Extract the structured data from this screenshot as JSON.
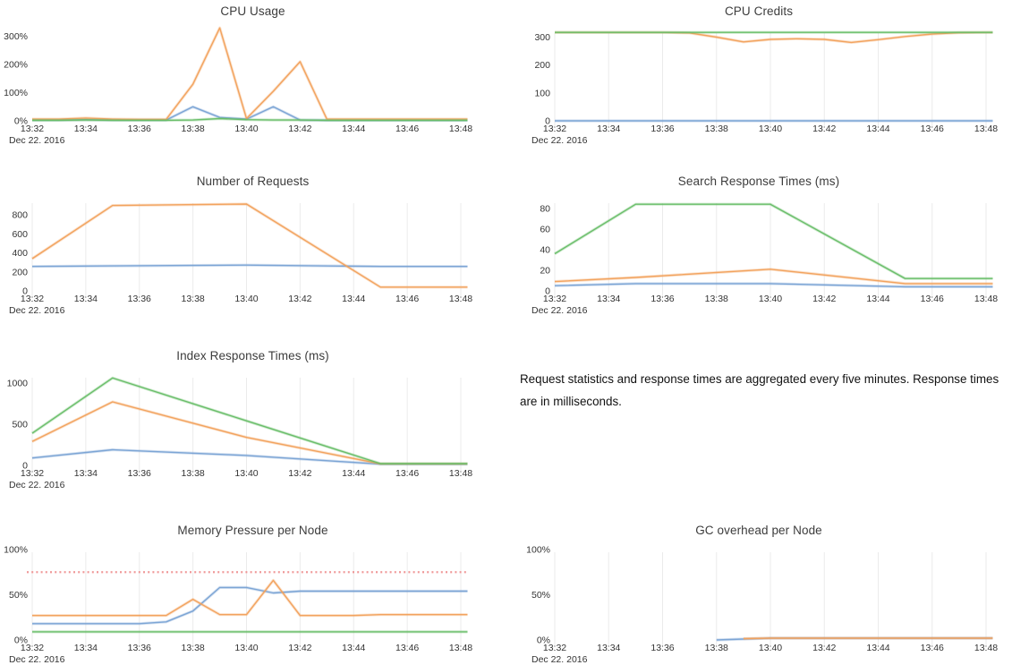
{
  "note": {
    "text": "Request statistics and response times are aggregated every five minutes. Response times are in milliseconds."
  },
  "palette": {
    "blue": "#7aa3d4",
    "orange": "#f2a15c",
    "green": "#68bd68",
    "red": "#ee8f8f",
    "grid": "#ebebeb",
    "tick_text": "#333333",
    "title_text": "#3c3c3c"
  },
  "x_axis": {
    "tick_labels": [
      "13:32",
      "13:34",
      "13:36",
      "13:38",
      "13:40",
      "13:42",
      "13:44",
      "13:46",
      "13:48"
    ],
    "tick_minutes": [
      0,
      2,
      4,
      6,
      8,
      10,
      12,
      14,
      16
    ],
    "date_label": "Dec 22. 2016",
    "minutes_domain": [
      0,
      16
    ]
  },
  "chart_data": [
    {
      "id": "cpu_usage",
      "type": "line",
      "title": "CPU Usage",
      "y_max": 337,
      "grid": false,
      "y_ticks": [
        {
          "v": 0,
          "label": "0%"
        },
        {
          "v": 100,
          "label": "100%"
        },
        {
          "v": 200,
          "label": "200%"
        },
        {
          "v": 300,
          "label": "300%"
        }
      ],
      "series": [
        {
          "color": "blue",
          "x": [
            0,
            1,
            2,
            3,
            4,
            5,
            6,
            7,
            8,
            9,
            10,
            11,
            12,
            13,
            14,
            15,
            16
          ],
          "y": [
            3,
            3,
            4,
            3,
            3,
            3,
            50,
            12,
            6,
            50,
            3,
            2,
            2,
            2,
            2,
            2,
            2
          ]
        },
        {
          "color": "orange",
          "x": [
            0,
            1,
            2,
            3,
            4,
            5,
            6,
            7,
            8,
            9,
            10,
            11,
            12,
            13,
            14,
            15,
            16
          ],
          "y": [
            6,
            6,
            10,
            6,
            5,
            5,
            130,
            330,
            8,
            105,
            210,
            6,
            6,
            6,
            6,
            6,
            6
          ]
        },
        {
          "color": "green",
          "x": [
            0,
            1,
            2,
            3,
            4,
            5,
            6,
            7,
            8,
            9,
            10,
            11,
            12,
            13,
            14,
            15,
            16
          ],
          "y": [
            2,
            2,
            3,
            2,
            2,
            2,
            3,
            8,
            4,
            3,
            3,
            2,
            2,
            2,
            2,
            2,
            2
          ]
        }
      ]
    },
    {
      "id": "cpu_credits",
      "type": "line",
      "title": "CPU Credits",
      "y_max": 340,
      "grid": true,
      "y_ticks": [
        {
          "v": 0,
          "label": "0"
        },
        {
          "v": 100,
          "label": "100"
        },
        {
          "v": 200,
          "label": "200"
        },
        {
          "v": 300,
          "label": "300"
        }
      ],
      "series": [
        {
          "color": "blue",
          "x": [
            0,
            1,
            2,
            3,
            4,
            5,
            6,
            7,
            8,
            9,
            10,
            11,
            12,
            13,
            14,
            15,
            16
          ],
          "y": [
            0,
            0,
            0,
            0,
            0,
            0,
            0,
            0,
            0,
            0,
            0,
            0,
            0,
            0,
            0,
            0,
            0
          ]
        },
        {
          "color": "orange",
          "x": [
            0,
            1,
            2,
            3,
            4,
            5,
            6,
            7,
            8,
            9,
            10,
            11,
            12,
            13,
            14,
            15,
            16
          ],
          "y": [
            317,
            317,
            317,
            317,
            317,
            315,
            300,
            283,
            292,
            294,
            292,
            281,
            291,
            302,
            311,
            316,
            317
          ]
        },
        {
          "color": "green",
          "x": [
            0,
            1,
            2,
            3,
            4,
            5,
            6,
            7,
            8,
            9,
            10,
            11,
            12,
            13,
            14,
            15,
            16
          ],
          "y": [
            317,
            317,
            317,
            317,
            317,
            317,
            317,
            317,
            317,
            317,
            317,
            317,
            317,
            317,
            317,
            317,
            317
          ]
        }
      ]
    },
    {
      "id": "requests",
      "type": "line",
      "title": "Number of Requests",
      "y_max": 1000,
      "grid": true,
      "y_ticks": [
        {
          "v": 0,
          "label": "0"
        },
        {
          "v": 200,
          "label": "200"
        },
        {
          "v": 400,
          "label": "400"
        },
        {
          "v": 600,
          "label": "600"
        },
        {
          "v": 800,
          "label": "800"
        }
      ],
      "series": [
        {
          "color": "blue",
          "x": [
            0,
            3,
            8,
            13,
            16
          ],
          "y": [
            258,
            263,
            272,
            258,
            258
          ]
        },
        {
          "color": "orange",
          "x": [
            0,
            3,
            8,
            13,
            16
          ],
          "y": [
            340,
            900,
            915,
            40,
            40
          ]
        }
      ]
    },
    {
      "id": "search_response",
      "type": "line",
      "title": "Search Response Times (ms)",
      "y_max": 92,
      "grid": true,
      "y_ticks": [
        {
          "v": 0,
          "label": "0"
        },
        {
          "v": 20,
          "label": "20"
        },
        {
          "v": 40,
          "label": "40"
        },
        {
          "v": 60,
          "label": "60"
        },
        {
          "v": 80,
          "label": "80"
        }
      ],
      "series": [
        {
          "color": "blue",
          "x": [
            0,
            3,
            8,
            13,
            16
          ],
          "y": [
            5,
            7,
            7,
            4,
            4
          ]
        },
        {
          "color": "orange",
          "x": [
            0,
            3,
            8,
            13,
            16
          ],
          "y": [
            9,
            13,
            21,
            7,
            7
          ]
        },
        {
          "color": "green",
          "x": [
            0,
            3,
            8,
            13,
            16
          ],
          "y": [
            36,
            84,
            84,
            12,
            12
          ]
        }
      ]
    },
    {
      "id": "index_response",
      "type": "line",
      "title": "Index Response Times (ms)",
      "y_max": 1150,
      "grid": true,
      "y_ticks": [
        {
          "v": 0,
          "label": "0"
        },
        {
          "v": 500,
          "label": "500"
        },
        {
          "v": 1000,
          "label": "1000"
        }
      ],
      "series": [
        {
          "color": "blue",
          "x": [
            0,
            3,
            8,
            13,
            16
          ],
          "y": [
            90,
            190,
            120,
            15,
            15
          ]
        },
        {
          "color": "orange",
          "x": [
            0,
            3,
            8,
            13,
            16
          ],
          "y": [
            290,
            770,
            340,
            20,
            20
          ]
        },
        {
          "color": "green",
          "x": [
            0,
            3,
            8,
            13,
            16
          ],
          "y": [
            390,
            1060,
            540,
            22,
            22
          ]
        }
      ]
    },
    {
      "id": "memory_pressure",
      "type": "line",
      "title": "Memory Pressure per Node",
      "y_max": 105,
      "grid": true,
      "threshold": {
        "v": 75,
        "color": "red",
        "style": "dotted"
      },
      "y_ticks": [
        {
          "v": 0,
          "label": "0%"
        },
        {
          "v": 50,
          "label": "50%"
        },
        {
          "v": 100,
          "label": "100%"
        }
      ],
      "series": [
        {
          "color": "blue",
          "x": [
            0,
            1,
            2,
            3,
            4,
            5,
            6,
            7,
            8,
            9,
            10,
            11,
            12,
            13,
            14,
            15,
            16
          ],
          "y": [
            18,
            18,
            18,
            18,
            18,
            20,
            32,
            58,
            58,
            52,
            54,
            54,
            54,
            54,
            54,
            54,
            54
          ]
        },
        {
          "color": "orange",
          "x": [
            0,
            1,
            2,
            3,
            4,
            5,
            6,
            7,
            8,
            9,
            10,
            11,
            12,
            13,
            14,
            15,
            16
          ],
          "y": [
            27,
            27,
            27,
            27,
            27,
            27,
            45,
            28,
            28,
            66,
            27,
            27,
            27,
            28,
            28,
            28,
            28
          ]
        },
        {
          "color": "green",
          "x": [
            0,
            1,
            2,
            3,
            4,
            5,
            6,
            7,
            8,
            9,
            10,
            11,
            12,
            13,
            14,
            15,
            16
          ],
          "y": [
            9,
            9,
            9,
            9,
            9,
            9,
            9,
            9,
            9,
            9,
            9,
            9,
            9,
            9,
            9,
            9,
            9
          ]
        }
      ]
    },
    {
      "id": "gc_overhead",
      "type": "line",
      "title": "GC overhead per Node",
      "y_max": 105,
      "grid": true,
      "y_ticks": [
        {
          "v": 0,
          "label": "0%"
        },
        {
          "v": 50,
          "label": "50%"
        },
        {
          "v": 100,
          "label": "100%"
        }
      ],
      "series": [
        {
          "color": "blue",
          "x": [
            6,
            7,
            8,
            16
          ],
          "y": [
            0,
            1,
            2,
            2
          ]
        },
        {
          "color": "orange",
          "x": [
            7,
            8,
            16
          ],
          "y": [
            1.5,
            2,
            2
          ]
        }
      ]
    }
  ]
}
